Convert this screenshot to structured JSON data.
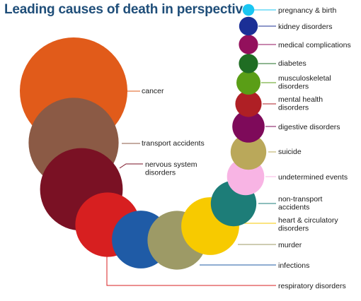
{
  "chart_data": {
    "type": "bubble",
    "title": "Leading causes of death in perspective",
    "series": [
      {
        "label": [
          "cancer"
        ],
        "value": 100,
        "color": "#e15b1a"
      },
      {
        "label": [
          "transport accidents"
        ],
        "value": 70,
        "color": "#8b5a45"
      },
      {
        "label": [
          "nervous system",
          "disorders"
        ],
        "value": 59,
        "color": "#7a1124"
      },
      {
        "label": [
          "respiratory disorders"
        ],
        "value": 36,
        "color": "#d71f20"
      },
      {
        "label": [
          "infections"
        ],
        "value": 29,
        "color": "#1f5ba6"
      },
      {
        "label": [
          "murder"
        ],
        "value": 30,
        "color": "#9d9a66"
      },
      {
        "label": [
          "heart & circulatory",
          "disorders"
        ],
        "value": 29,
        "color": "#f7ca00"
      },
      {
        "label": [
          "non-transport",
          "accidents"
        ],
        "value": 18,
        "color": "#1d7d78"
      },
      {
        "label": [
          "undetermined events"
        ],
        "value": 12,
        "color": "#f8b4e4"
      },
      {
        "label": [
          "suicide"
        ],
        "value": 11,
        "color": "#baa85a"
      },
      {
        "label": [
          "digestive disorders"
        ],
        "value": 9,
        "color": "#7e0a5a"
      },
      {
        "label": [
          "mental health",
          "disorders"
        ],
        "value": 6,
        "color": "#af1f25"
      },
      {
        "label": [
          "musculoskeletal",
          "disorders"
        ],
        "value": 5,
        "color": "#5a9e16"
      },
      {
        "label": [
          "diabetes"
        ],
        "value": 3.2,
        "color": "#1f6d23"
      },
      {
        "label": [
          "medical complications"
        ],
        "value": 3.2,
        "color": "#93105c"
      },
      {
        "label": [
          "kidney disorders"
        ],
        "value": 3.0,
        "color": "#1b2f96"
      },
      {
        "label": [
          "pregnancy & birth"
        ],
        "value": 1.2,
        "color": "#1ac6f2"
      }
    ]
  }
}
